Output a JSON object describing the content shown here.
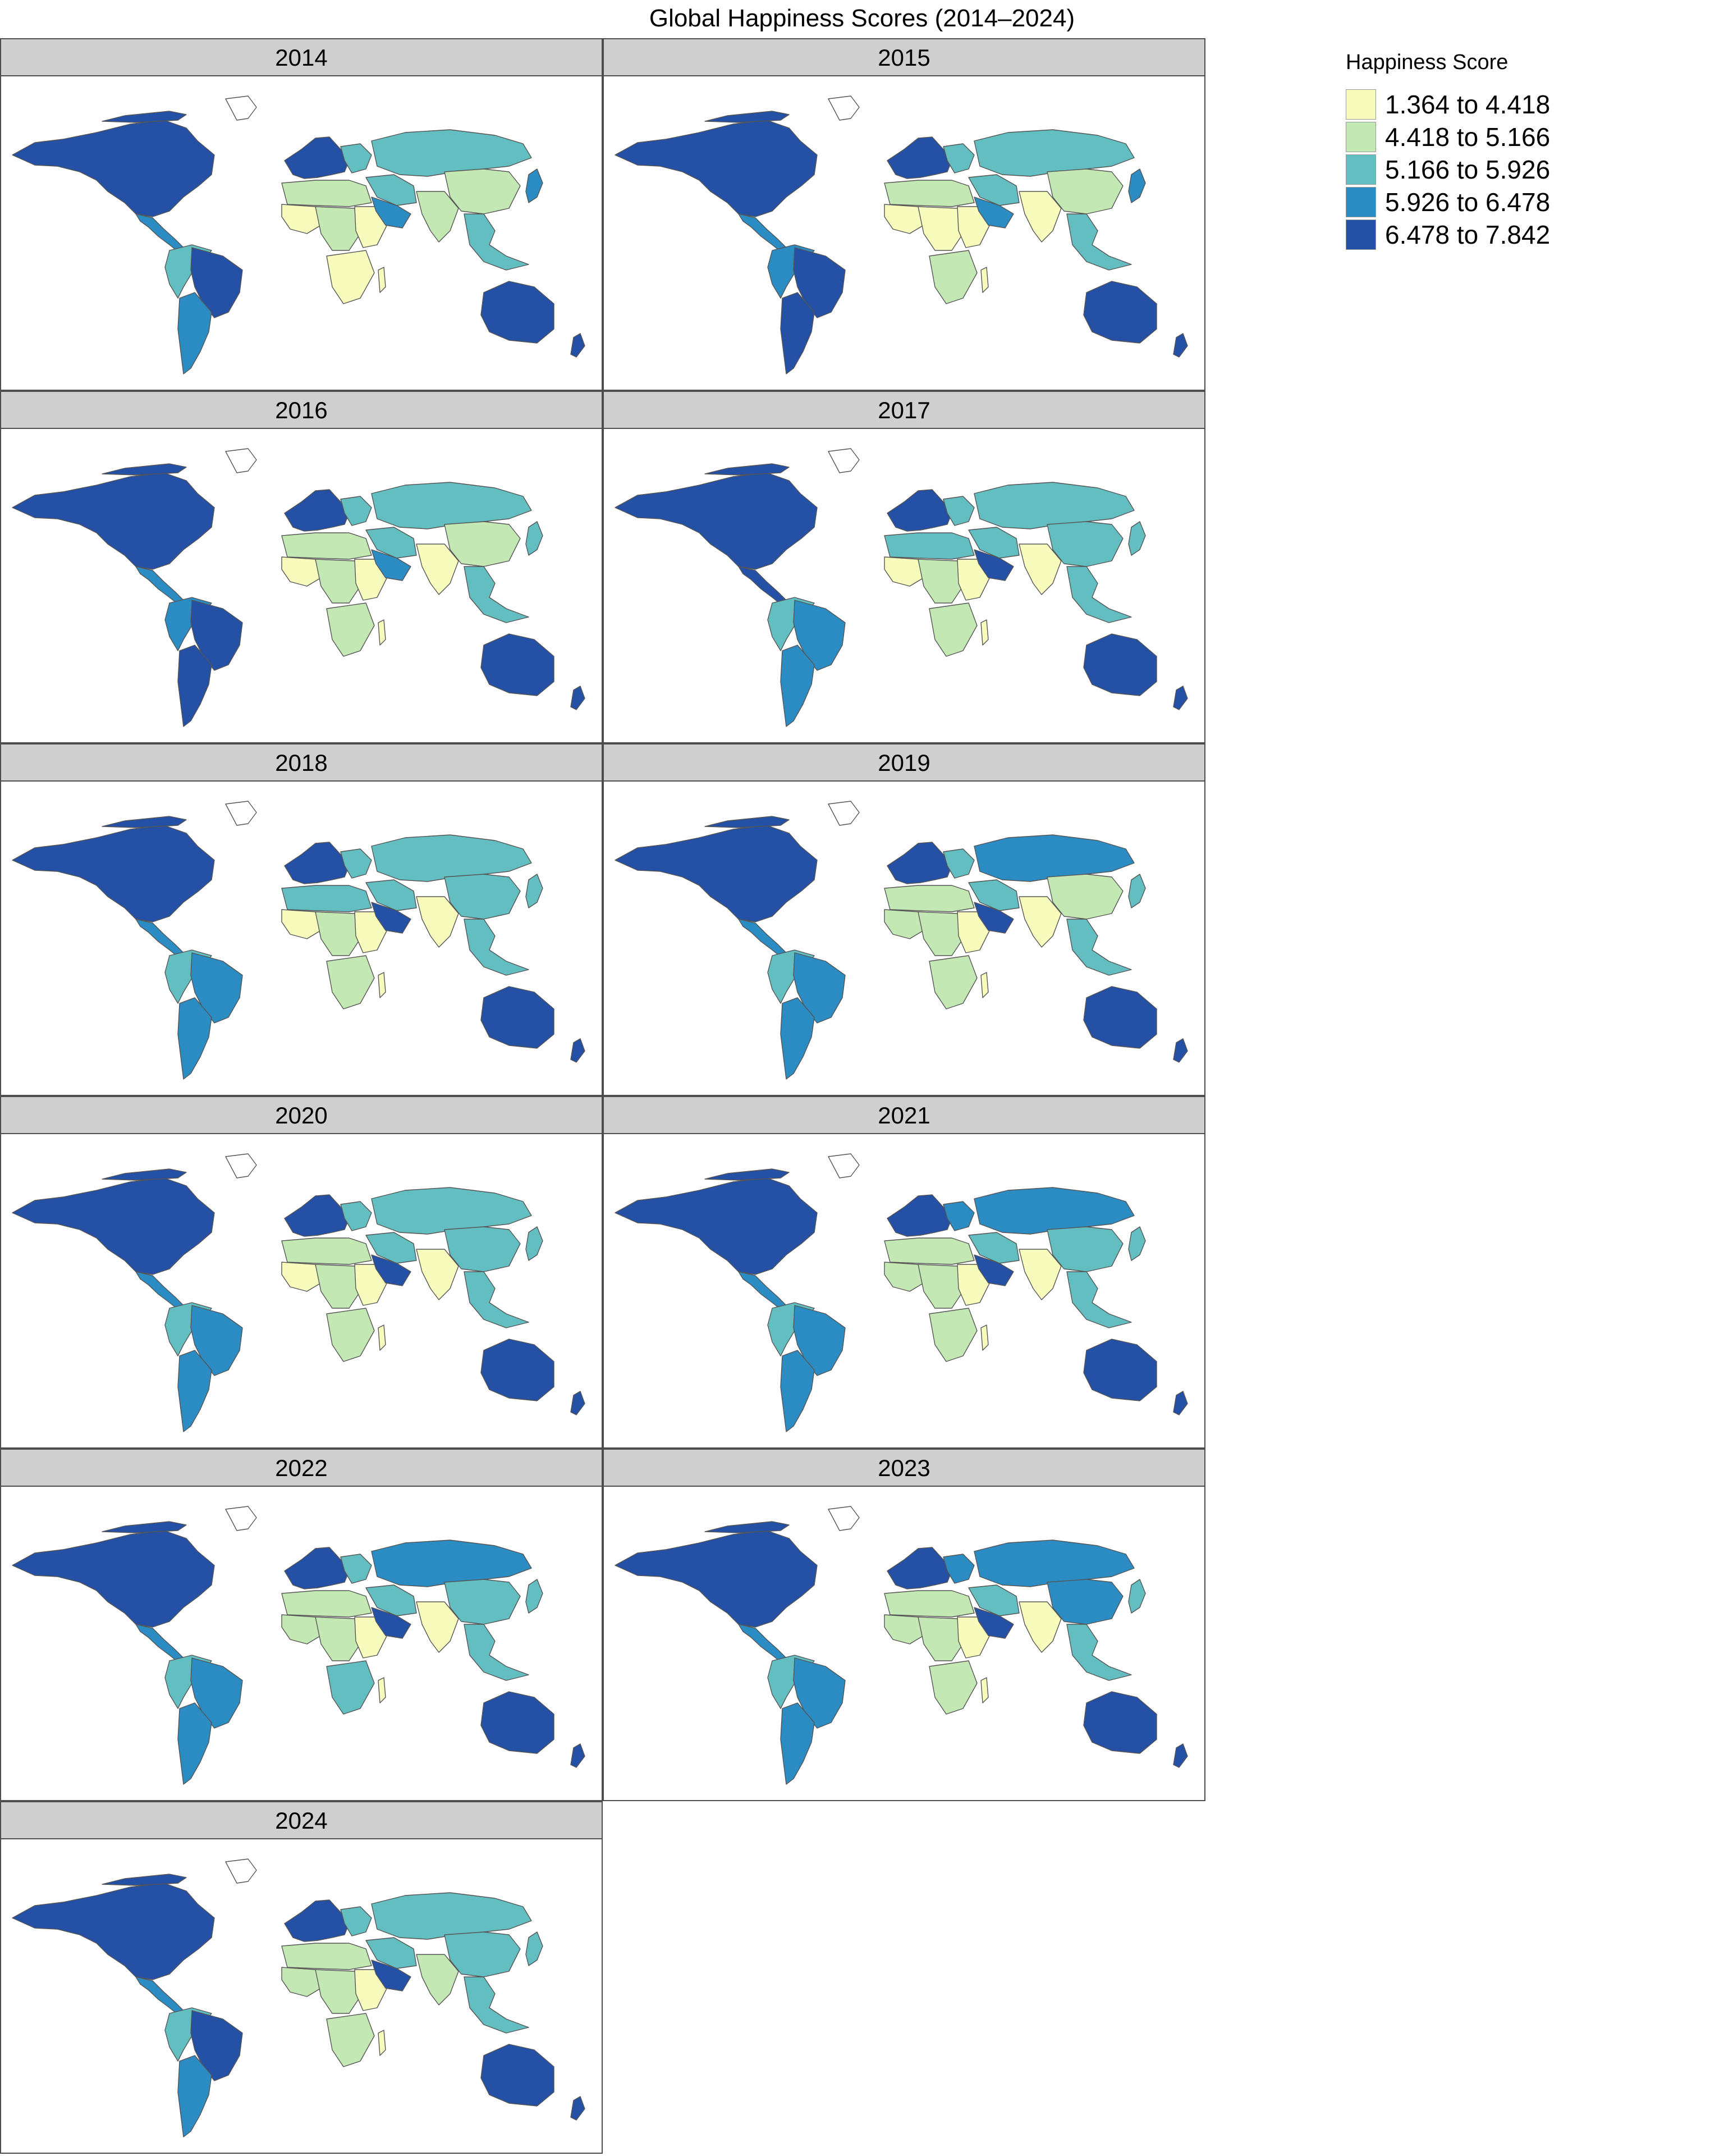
{
  "title": "Global Happiness Scores (2014–2024)",
  "legend": {
    "title": "Happiness Score",
    "items": [
      {
        "label": "1.364 to 4.418",
        "color": "#f7fcbd"
      },
      {
        "label": "4.418 to 5.166",
        "color": "#c4e8b4"
      },
      {
        "label": "5.166 to 5.926",
        "color": "#62bec1"
      },
      {
        "label": "5.926 to 6.478",
        "color": "#2b8cc4"
      },
      {
        "label": "6.478 to 7.842",
        "color": "#2450a5"
      }
    ]
  },
  "panels": [
    {
      "year": "2014",
      "classes": {
        "north_america": 5,
        "central_america": 4,
        "south_america_north": 3,
        "brazil": 5,
        "south_america_south": 4,
        "europe_west": 5,
        "europe_east": 3,
        "north_africa": 2,
        "west_africa": 1,
        "central_africa": 2,
        "east_africa": 1,
        "southern_africa": 1,
        "middle_east": 3,
        "arabia": 4,
        "russia_central_asia": 3,
        "china": 2,
        "south_asia": 2,
        "southeast_asia": 3,
        "japan": 4,
        "australia": 5
      }
    },
    {
      "year": "2015",
      "classes": {
        "north_america": 5,
        "central_america": 4,
        "south_america_north": 4,
        "brazil": 5,
        "south_america_south": 5,
        "europe_west": 5,
        "europe_east": 3,
        "north_africa": 2,
        "west_africa": 1,
        "central_africa": 1,
        "east_africa": 1,
        "southern_africa": 2,
        "middle_east": 3,
        "arabia": 4,
        "russia_central_asia": 3,
        "china": 2,
        "south_asia": 1,
        "southeast_asia": 3,
        "japan": 4,
        "australia": 5
      }
    },
    {
      "year": "2016",
      "classes": {
        "north_america": 5,
        "central_america": 4,
        "south_america_north": 4,
        "brazil": 5,
        "south_america_south": 5,
        "europe_west": 5,
        "europe_east": 3,
        "north_africa": 2,
        "west_africa": 1,
        "central_africa": 2,
        "east_africa": 1,
        "southern_africa": 2,
        "middle_east": 3,
        "arabia": 4,
        "russia_central_asia": 3,
        "china": 2,
        "south_asia": 1,
        "southeast_asia": 3,
        "japan": 3,
        "australia": 5
      }
    },
    {
      "year": "2017",
      "classes": {
        "north_america": 5,
        "central_america": 5,
        "south_america_north": 3,
        "brazil": 4,
        "south_america_south": 4,
        "europe_west": 5,
        "europe_east": 3,
        "north_africa": 3,
        "west_africa": 1,
        "central_africa": 2,
        "east_africa": 1,
        "southern_africa": 2,
        "middle_east": 3,
        "arabia": 5,
        "russia_central_asia": 3,
        "china": 3,
        "south_asia": 1,
        "southeast_asia": 3,
        "japan": 3,
        "australia": 5
      }
    },
    {
      "year": "2018",
      "classes": {
        "north_america": 5,
        "central_america": 4,
        "south_america_north": 3,
        "brazil": 4,
        "south_america_south": 4,
        "europe_west": 5,
        "europe_east": 3,
        "north_africa": 3,
        "west_africa": 1,
        "central_africa": 2,
        "east_africa": 1,
        "southern_africa": 2,
        "middle_east": 3,
        "arabia": 5,
        "russia_central_asia": 3,
        "china": 3,
        "south_asia": 1,
        "southeast_asia": 3,
        "japan": 3,
        "australia": 5
      }
    },
    {
      "year": "2019",
      "classes": {
        "north_america": 5,
        "central_america": 4,
        "south_america_north": 3,
        "brazil": 4,
        "south_america_south": 4,
        "europe_west": 5,
        "europe_east": 3,
        "north_africa": 2,
        "west_africa": 2,
        "central_africa": 2,
        "east_africa": 1,
        "southern_africa": 2,
        "middle_east": 3,
        "arabia": 5,
        "russia_central_asia": 4,
        "china": 2,
        "south_asia": 1,
        "southeast_asia": 3,
        "japan": 3,
        "australia": 5
      }
    },
    {
      "year": "2020",
      "classes": {
        "north_america": 5,
        "central_america": 4,
        "south_america_north": 3,
        "brazil": 4,
        "south_america_south": 4,
        "europe_west": 5,
        "europe_east": 3,
        "north_africa": 2,
        "west_africa": 1,
        "central_africa": 2,
        "east_africa": 1,
        "southern_africa": 2,
        "middle_east": 3,
        "arabia": 5,
        "russia_central_asia": 3,
        "china": 3,
        "south_asia": 1,
        "southeast_asia": 3,
        "japan": 3,
        "australia": 5
      }
    },
    {
      "year": "2021",
      "classes": {
        "north_america": 5,
        "central_america": 4,
        "south_america_north": 3,
        "brazil": 4,
        "south_america_south": 4,
        "europe_west": 5,
        "europe_east": 4,
        "north_africa": 2,
        "west_africa": 2,
        "central_africa": 2,
        "east_africa": 1,
        "southern_africa": 2,
        "middle_east": 3,
        "arabia": 5,
        "russia_central_asia": 4,
        "china": 3,
        "south_asia": 1,
        "southeast_asia": 3,
        "japan": 3,
        "australia": 5
      }
    },
    {
      "year": "2022",
      "classes": {
        "north_america": 5,
        "central_america": 4,
        "south_america_north": 3,
        "brazil": 4,
        "south_america_south": 4,
        "europe_west": 5,
        "europe_east": 3,
        "north_africa": 2,
        "west_africa": 2,
        "central_africa": 2,
        "east_africa": 1,
        "southern_africa": 3,
        "middle_east": 3,
        "arabia": 5,
        "russia_central_asia": 4,
        "china": 3,
        "south_asia": 1,
        "southeast_asia": 3,
        "japan": 3,
        "australia": 5
      }
    },
    {
      "year": "2023",
      "classes": {
        "north_america": 5,
        "central_america": 4,
        "south_america_north": 3,
        "brazil": 4,
        "south_america_south": 4,
        "europe_west": 5,
        "europe_east": 4,
        "north_africa": 2,
        "west_africa": 2,
        "central_africa": 2,
        "east_africa": 1,
        "southern_africa": 2,
        "middle_east": 3,
        "arabia": 5,
        "russia_central_asia": 4,
        "china": 4,
        "south_asia": 1,
        "southeast_asia": 3,
        "japan": 3,
        "australia": 5
      }
    },
    {
      "year": "2024",
      "classes": {
        "north_america": 5,
        "central_america": 4,
        "south_america_north": 3,
        "brazil": 5,
        "south_america_south": 4,
        "europe_west": 5,
        "europe_east": 3,
        "north_africa": 2,
        "west_africa": 2,
        "central_africa": 2,
        "east_africa": 1,
        "southern_africa": 2,
        "middle_east": 3,
        "arabia": 5,
        "russia_central_asia": 3,
        "china": 3,
        "south_asia": 2,
        "southeast_asia": 3,
        "japan": 3,
        "australia": 5
      }
    }
  ]
}
